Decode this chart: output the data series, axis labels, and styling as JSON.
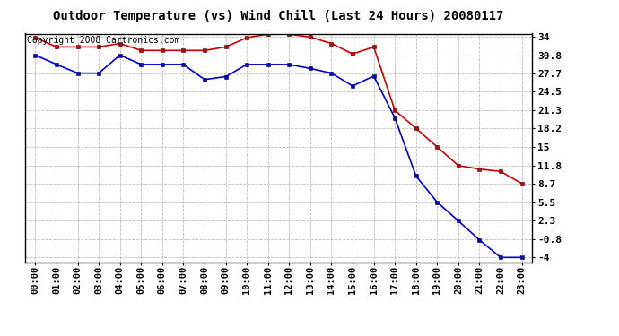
{
  "title": "Outdoor Temperature (vs) Wind Chill (Last 24 Hours) 20080117",
  "copyright_text": "Copyright 2008 Cartronics.com",
  "hours": [
    "00:00",
    "01:00",
    "02:00",
    "03:00",
    "04:00",
    "05:00",
    "06:00",
    "07:00",
    "08:00",
    "09:00",
    "10:00",
    "11:00",
    "12:00",
    "13:00",
    "14:00",
    "15:00",
    "16:00",
    "17:00",
    "18:00",
    "19:00",
    "20:00",
    "21:00",
    "22:00",
    "23:00"
  ],
  "temp": [
    33.8,
    32.2,
    32.2,
    32.2,
    32.8,
    31.6,
    31.6,
    31.6,
    31.6,
    32.2,
    33.8,
    34.4,
    34.4,
    33.9,
    32.8,
    31.0,
    32.2,
    21.3,
    18.2,
    15.0,
    11.8,
    11.2,
    10.8,
    8.7
  ],
  "windchill": [
    30.8,
    29.2,
    27.7,
    27.7,
    30.8,
    29.2,
    29.2,
    29.2,
    26.6,
    27.1,
    29.2,
    29.2,
    29.2,
    28.5,
    27.7,
    25.5,
    27.2,
    20.0,
    10.0,
    5.5,
    2.3,
    -1.0,
    -4.0,
    -4.0
  ],
  "yticks": [
    34.0,
    30.8,
    27.7,
    24.5,
    21.3,
    18.2,
    15.0,
    11.8,
    8.7,
    5.5,
    2.3,
    -0.8,
    -4.0
  ],
  "ymin": -4.0,
  "ymax": 34.0,
  "temp_color": "#cc0000",
  "windchill_color": "#0000cc",
  "bg_color": "#ffffff",
  "plot_bg_color": "#ffffff",
  "grid_color": "#bbbbbb",
  "title_fontsize": 10,
  "copyright_fontsize": 7,
  "tick_fontsize": 7.5,
  "ytick_fontsize": 8
}
